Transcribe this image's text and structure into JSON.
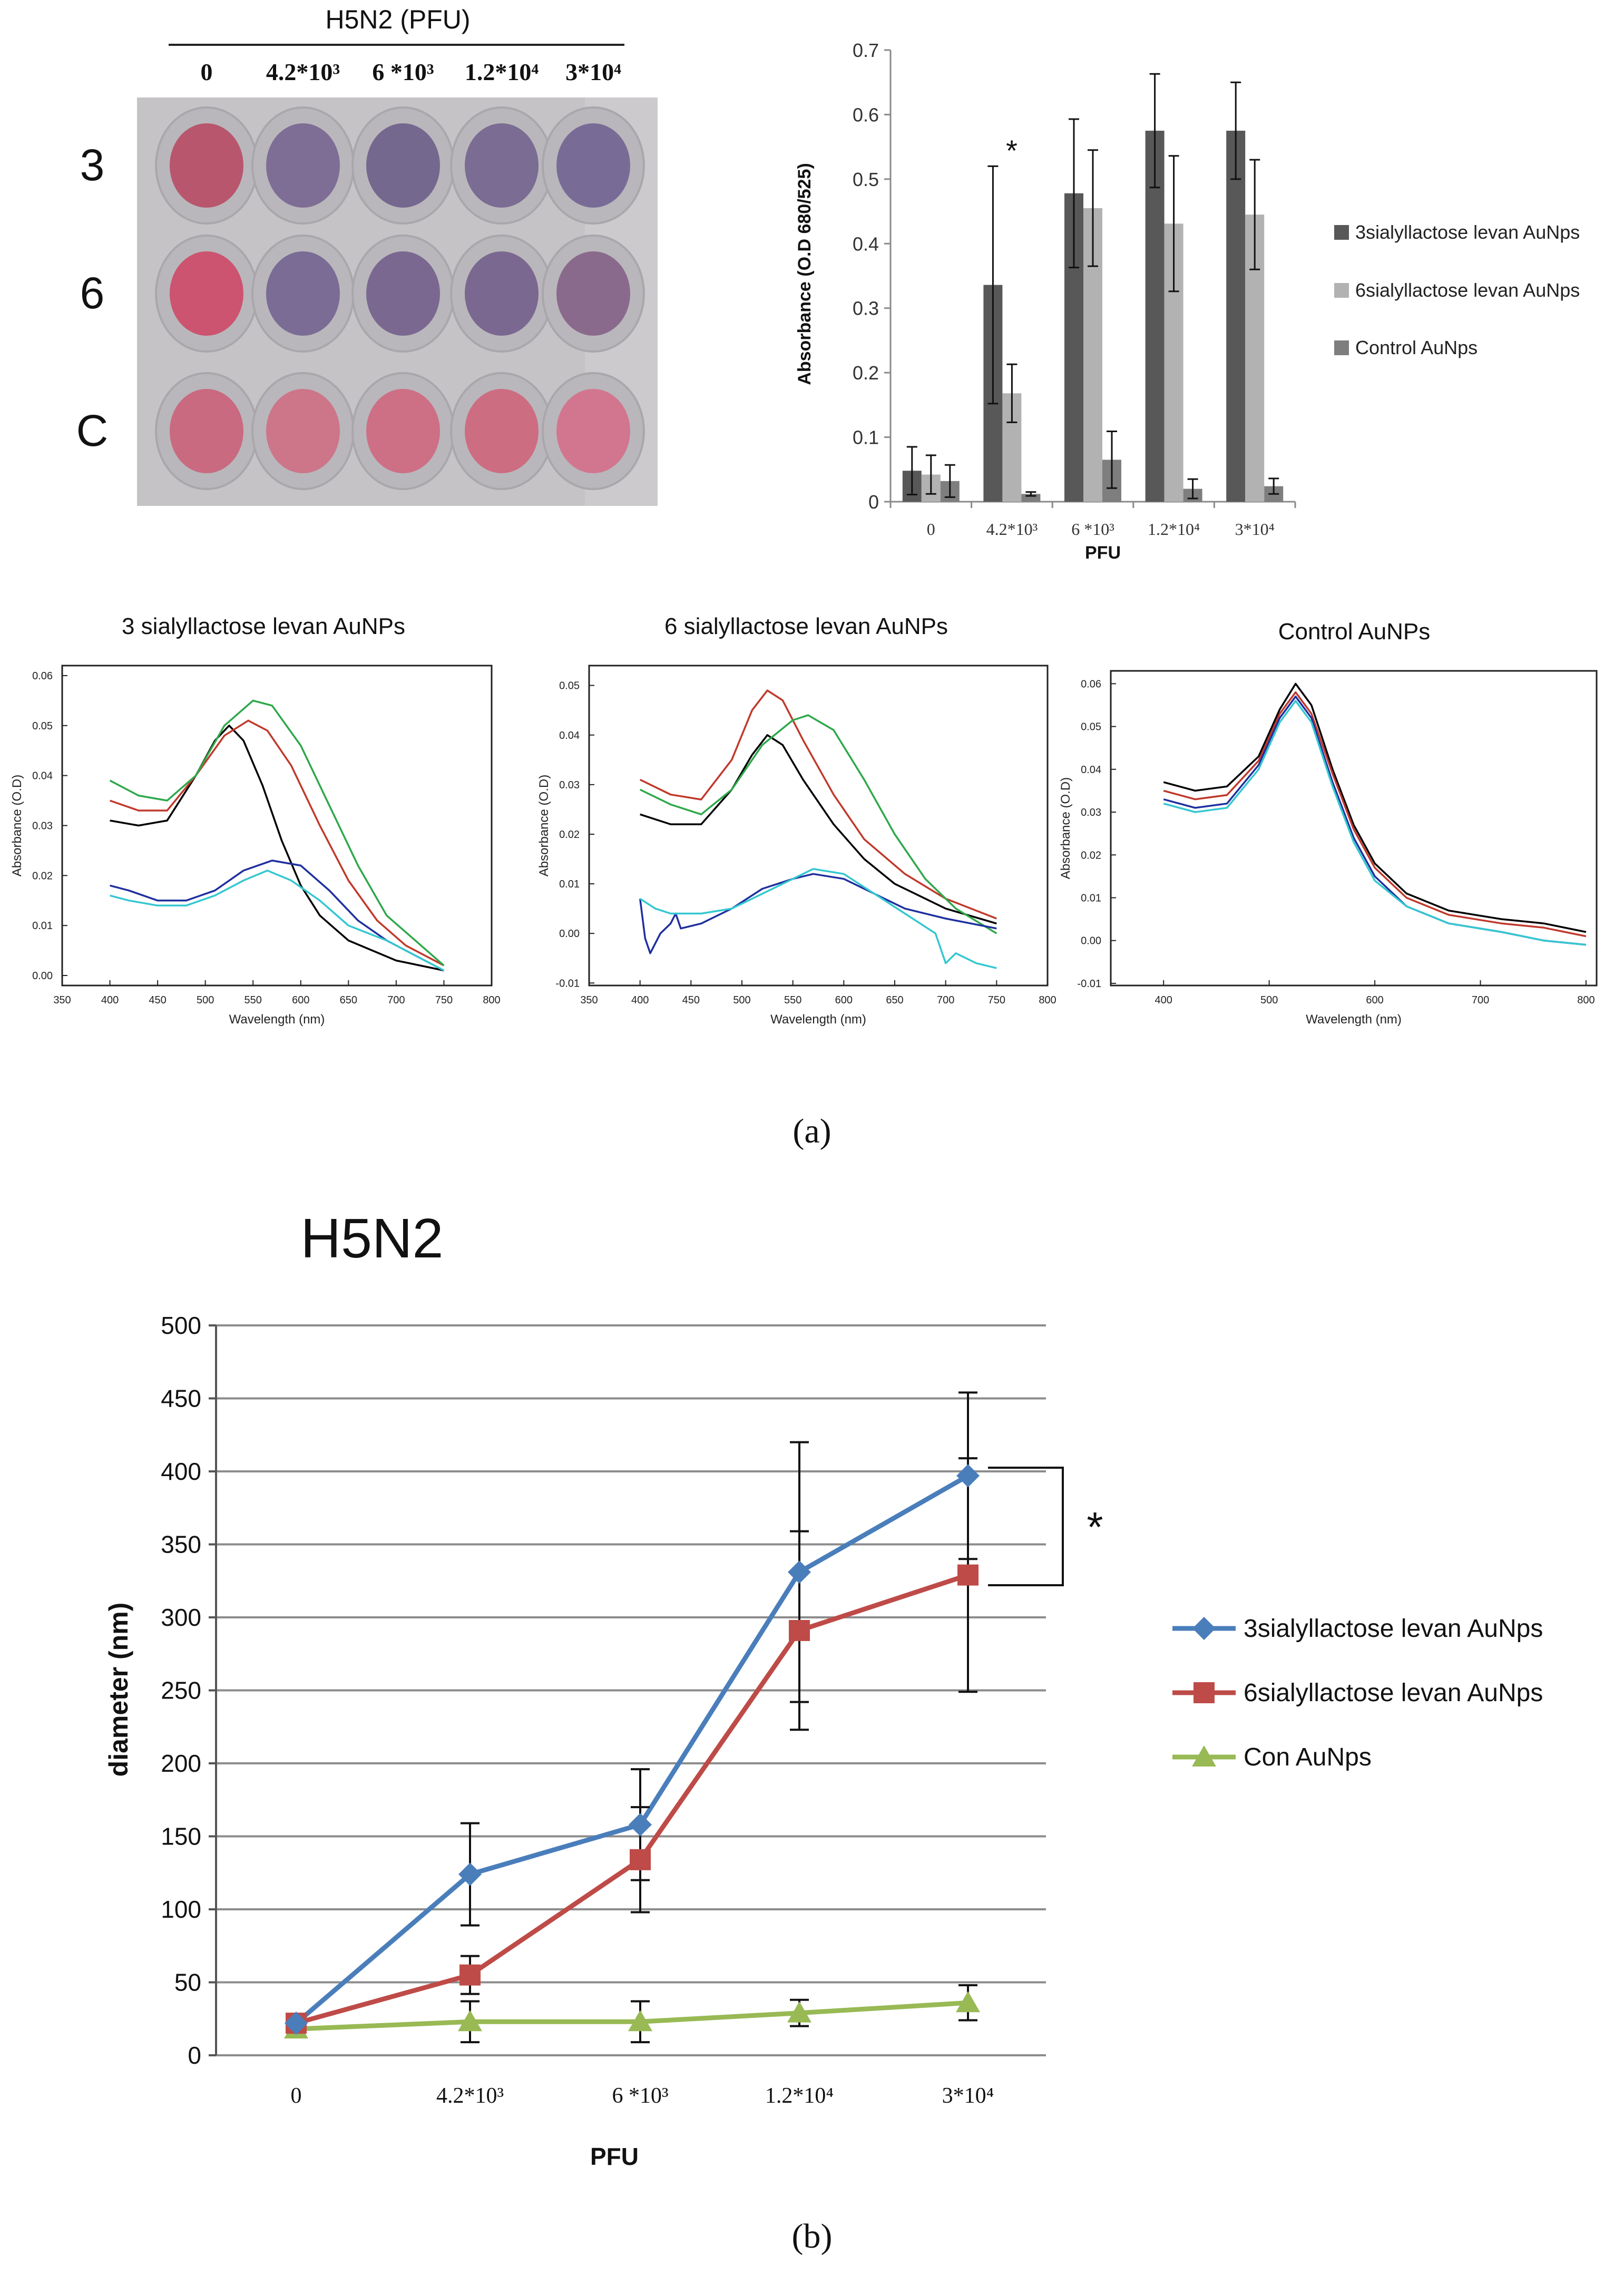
{
  "plate": {
    "header": "H5N2 (PFU)",
    "columns": [
      "0",
      "4.2*10³",
      "6 *10³",
      "1.2*10⁴",
      "3*10⁴"
    ],
    "rows": [
      "3",
      "6",
      "C"
    ],
    "well_colors": [
      [
        "#b8566e",
        "#7e6e96",
        "#75688f",
        "#7b6c93",
        "#786c97"
      ],
      [
        "#cc5470",
        "#7a6c95",
        "#7a6891",
        "#7b6890",
        "#8a6a8c"
      ],
      [
        "#c96a80",
        "#cd7589",
        "#cd6f85",
        "#cd6d82",
        "#d27690"
      ]
    ]
  },
  "bar_chart": {
    "type": "bar",
    "categories": [
      "0",
      "4.2*10³",
      "6 *10³",
      "1.2*10⁴",
      "3*10⁴"
    ],
    "series": [
      {
        "name": "3sialyllactose levan AuNps",
        "color": "#585858",
        "values": [
          0.048,
          0.336,
          0.478,
          0.575,
          0.575
        ],
        "errors": [
          0.037,
          0.184,
          0.115,
          0.088,
          0.075
        ]
      },
      {
        "name": "6sialyllactose levan AuNps",
        "color": "#b2b2b2",
        "values": [
          0.042,
          0.168,
          0.455,
          0.431,
          0.445
        ],
        "errors": [
          0.03,
          0.045,
          0.09,
          0.105,
          0.085
        ]
      },
      {
        "name": "Control AuNps",
        "color": "#7e7e7e",
        "values": [
          0.032,
          0.012,
          0.065,
          0.02,
          0.024
        ],
        "errors": [
          0.025,
          0.003,
          0.044,
          0.015,
          0.012
        ]
      }
    ],
    "ylabel": "Absorbance (O.D 680/525)",
    "xlabel": "PFU",
    "ylim": [
      0,
      0.7
    ],
    "yticks": [
      "0",
      "0.1",
      "0.2",
      "0.3",
      "0.4",
      "0.5",
      "0.6",
      "0.7"
    ],
    "annotation": "*"
  },
  "spectra": [
    {
      "title": "3 sialyllactose levan AuNPs",
      "ylabel": "Absorbance (O.D)",
      "xlabel": "Wavelength (nm)",
      "xticks": [
        "350",
        "400",
        "450",
        "500",
        "550",
        "600",
        "650",
        "700",
        "750",
        "800"
      ],
      "yticks": [
        "0.00",
        "0.01",
        "0.02",
        "0.03",
        "0.04",
        "0.05",
        "0.06"
      ],
      "xlim": [
        350,
        800
      ],
      "ylim": [
        -0.002,
        0.062
      ],
      "curves": [
        {
          "color": "#000000",
          "points": [
            [
              400,
              0.031
            ],
            [
              430,
              0.03
            ],
            [
              460,
              0.031
            ],
            [
              490,
              0.04
            ],
            [
              510,
              0.047
            ],
            [
              525,
              0.05
            ],
            [
              540,
              0.047
            ],
            [
              560,
              0.038
            ],
            [
              580,
              0.027
            ],
            [
              600,
              0.018
            ],
            [
              620,
              0.012
            ],
            [
              650,
              0.007
            ],
            [
              700,
              0.003
            ],
            [
              750,
              0.001
            ]
          ]
        },
        {
          "color": "#c0392b",
          "points": [
            [
              400,
              0.035
            ],
            [
              430,
              0.033
            ],
            [
              460,
              0.033
            ],
            [
              490,
              0.04
            ],
            [
              520,
              0.048
            ],
            [
              545,
              0.051
            ],
            [
              565,
              0.049
            ],
            [
              590,
              0.042
            ],
            [
              620,
              0.03
            ],
            [
              650,
              0.019
            ],
            [
              680,
              0.011
            ],
            [
              710,
              0.006
            ],
            [
              750,
              0.002
            ]
          ]
        },
        {
          "color": "#2ea84a",
          "points": [
            [
              400,
              0.039
            ],
            [
              430,
              0.036
            ],
            [
              460,
              0.035
            ],
            [
              490,
              0.04
            ],
            [
              520,
              0.05
            ],
            [
              550,
              0.055
            ],
            [
              570,
              0.054
            ],
            [
              600,
              0.046
            ],
            [
              630,
              0.034
            ],
            [
              660,
              0.022
            ],
            [
              690,
              0.012
            ],
            [
              720,
              0.007
            ],
            [
              750,
              0.002
            ]
          ]
        },
        {
          "color": "#1f2f9e",
          "points": [
            [
              400,
              0.018
            ],
            [
              420,
              0.017
            ],
            [
              450,
              0.015
            ],
            [
              480,
              0.015
            ],
            [
              510,
              0.017
            ],
            [
              540,
              0.021
            ],
            [
              570,
              0.023
            ],
            [
              600,
              0.022
            ],
            [
              630,
              0.017
            ],
            [
              660,
              0.011
            ],
            [
              690,
              0.007
            ],
            [
              720,
              0.004
            ],
            [
              750,
              0.001
            ]
          ]
        },
        {
          "color": "#34c7d1",
          "points": [
            [
              400,
              0.016
            ],
            [
              420,
              0.015
            ],
            [
              450,
              0.014
            ],
            [
              480,
              0.014
            ],
            [
              510,
              0.016
            ],
            [
              540,
              0.019
            ],
            [
              565,
              0.021
            ],
            [
              590,
              0.019
            ],
            [
              620,
              0.015
            ],
            [
              650,
              0.01
            ],
            [
              690,
              0.007
            ],
            [
              720,
              0.004
            ],
            [
              750,
              0.001
            ]
          ]
        }
      ]
    },
    {
      "title": "6 sialyllactose levan AuNPs",
      "ylabel": "Absorbance (O.D)",
      "xlabel": "Wavelength (nm)",
      "xticks": [
        "350",
        "400",
        "450",
        "500",
        "550",
        "600",
        "650",
        "700",
        "750",
        "800"
      ],
      "yticks": [
        "-0.01",
        "0.00",
        "0.01",
        "0.02",
        "0.03",
        "0.04",
        "0.05"
      ],
      "xlim": [
        350,
        800
      ],
      "ylim": [
        -0.0105,
        0.054
      ],
      "curves": [
        {
          "color": "#000000",
          "points": [
            [
              400,
              0.024
            ],
            [
              430,
              0.022
            ],
            [
              460,
              0.022
            ],
            [
              490,
              0.029
            ],
            [
              510,
              0.036
            ],
            [
              525,
              0.04
            ],
            [
              540,
              0.038
            ],
            [
              560,
              0.031
            ],
            [
              590,
              0.022
            ],
            [
              620,
              0.015
            ],
            [
              650,
              0.01
            ],
            [
              700,
              0.005
            ],
            [
              750,
              0.002
            ]
          ]
        },
        {
          "color": "#c0392b",
          "points": [
            [
              400,
              0.031
            ],
            [
              430,
              0.028
            ],
            [
              460,
              0.027
            ],
            [
              490,
              0.035
            ],
            [
              510,
              0.045
            ],
            [
              525,
              0.049
            ],
            [
              540,
              0.047
            ],
            [
              560,
              0.039
            ],
            [
              590,
              0.028
            ],
            [
              620,
              0.019
            ],
            [
              660,
              0.012
            ],
            [
              700,
              0.007
            ],
            [
              750,
              0.003
            ]
          ]
        },
        {
          "color": "#2ea84a",
          "points": [
            [
              400,
              0.029
            ],
            [
              430,
              0.026
            ],
            [
              460,
              0.024
            ],
            [
              490,
              0.029
            ],
            [
              520,
              0.038
            ],
            [
              550,
              0.043
            ],
            [
              565,
              0.044
            ],
            [
              590,
              0.041
            ],
            [
              620,
              0.031
            ],
            [
              650,
              0.02
            ],
            [
              680,
              0.011
            ],
            [
              710,
              0.005
            ],
            [
              750,
              0.0
            ]
          ]
        },
        {
          "color": "#1f2f9e",
          "points": [
            [
              400,
              0.007
            ],
            [
              405,
              -0.001
            ],
            [
              410,
              -0.004
            ],
            [
              420,
              0.0
            ],
            [
              430,
              0.002
            ],
            [
              435,
              0.004
            ],
            [
              440,
              0.001
            ],
            [
              460,
              0.002
            ],
            [
              490,
              0.005
            ],
            [
              520,
              0.009
            ],
            [
              550,
              0.011
            ],
            [
              570,
              0.012
            ],
            [
              600,
              0.011
            ],
            [
              630,
              0.008
            ],
            [
              660,
              0.005
            ],
            [
              700,
              0.003
            ],
            [
              750,
              0.001
            ]
          ]
        },
        {
          "color": "#34c7d1",
          "points": [
            [
              400,
              0.007
            ],
            [
              415,
              0.005
            ],
            [
              430,
              0.004
            ],
            [
              460,
              0.004
            ],
            [
              490,
              0.005
            ],
            [
              520,
              0.008
            ],
            [
              550,
              0.011
            ],
            [
              570,
              0.013
            ],
            [
              600,
              0.012
            ],
            [
              630,
              0.008
            ],
            [
              660,
              0.004
            ],
            [
              690,
              0.0
            ],
            [
              700,
              -0.006
            ],
            [
              710,
              -0.004
            ],
            [
              730,
              -0.006
            ],
            [
              750,
              -0.007
            ]
          ]
        }
      ]
    },
    {
      "title": "Control AuNPs",
      "ylabel": "Absorbance (O.D)",
      "xlabel": "Wavelength (nm)",
      "xticks": [
        "400",
        "500",
        "600",
        "700",
        "800"
      ],
      "yticks": [
        "-0.01",
        "0.00",
        "0.01",
        "0.02",
        "0.03",
        "0.04",
        "0.05",
        "0.06"
      ],
      "xlim": [
        350,
        810
      ],
      "ylim": [
        -0.0105,
        0.063
      ],
      "curves": [
        {
          "color": "#000000",
          "points": [
            [
              400,
              0.037
            ],
            [
              430,
              0.035
            ],
            [
              460,
              0.036
            ],
            [
              490,
              0.043
            ],
            [
              510,
              0.054
            ],
            [
              525,
              0.06
            ],
            [
              540,
              0.055
            ],
            [
              560,
              0.04
            ],
            [
              580,
              0.027
            ],
            [
              600,
              0.018
            ],
            [
              630,
              0.011
            ],
            [
              670,
              0.007
            ],
            [
              720,
              0.005
            ],
            [
              760,
              0.004
            ],
            [
              800,
              0.002
            ]
          ]
        },
        {
          "color": "#c0392b",
          "points": [
            [
              400,
              0.035
            ],
            [
              430,
              0.033
            ],
            [
              460,
              0.034
            ],
            [
              490,
              0.042
            ],
            [
              510,
              0.053
            ],
            [
              525,
              0.058
            ],
            [
              540,
              0.053
            ],
            [
              560,
              0.039
            ],
            [
              580,
              0.026
            ],
            [
              600,
              0.017
            ],
            [
              630,
              0.01
            ],
            [
              670,
              0.006
            ],
            [
              720,
              0.004
            ],
            [
              760,
              0.003
            ],
            [
              800,
              0.001
            ]
          ]
        },
        {
          "color": "#1f2f9e",
          "points": [
            [
              400,
              0.033
            ],
            [
              430,
              0.031
            ],
            [
              460,
              0.032
            ],
            [
              490,
              0.041
            ],
            [
              510,
              0.052
            ],
            [
              525,
              0.057
            ],
            [
              540,
              0.052
            ],
            [
              560,
              0.037
            ],
            [
              580,
              0.024
            ],
            [
              600,
              0.015
            ],
            [
              630,
              0.008
            ],
            [
              670,
              0.004
            ],
            [
              720,
              0.002
            ],
            [
              760,
              0.0
            ],
            [
              800,
              -0.001
            ]
          ]
        },
        {
          "color": "#34c7d1",
          "points": [
            [
              400,
              0.032
            ],
            [
              430,
              0.03
            ],
            [
              460,
              0.031
            ],
            [
              490,
              0.04
            ],
            [
              510,
              0.051
            ],
            [
              525,
              0.056
            ],
            [
              540,
              0.051
            ],
            [
              560,
              0.036
            ],
            [
              580,
              0.023
            ],
            [
              600,
              0.014
            ],
            [
              630,
              0.008
            ],
            [
              670,
              0.004
            ],
            [
              720,
              0.002
            ],
            [
              760,
              0.0
            ],
            [
              800,
              -0.001
            ]
          ]
        }
      ]
    }
  ],
  "label_a": "(a)",
  "line_chart": {
    "type": "line",
    "title": "H5N2",
    "categories": [
      "0",
      "4.2*10³",
      "6 *10³",
      "1.2*10⁴",
      "3*10⁴"
    ],
    "series": [
      {
        "name": "3sialyllactose levan AuNps",
        "color": "#4a7ebb",
        "marker": "diamond",
        "values": [
          22,
          124,
          158,
          331,
          397
        ],
        "errors": [
          0,
          35,
          38,
          89,
          57
        ]
      },
      {
        "name": "6sialyllactose levan AuNps",
        "color": "#be4b48",
        "marker": "square",
        "values": [
          22,
          55,
          134,
          291,
          329
        ],
        "errors": [
          0,
          13,
          36,
          68,
          80
        ]
      },
      {
        "name": "Con AuNps",
        "color": "#98b954",
        "marker": "triangle",
        "values": [
          18,
          23,
          23,
          29,
          36
        ],
        "errors": [
          0,
          14,
          14,
          9,
          12
        ]
      }
    ],
    "xlabel": "PFU",
    "ylabel": "diameter (nm)",
    "ylim": [
      0,
      500
    ],
    "yticks": [
      "0",
      "50",
      "100",
      "150",
      "200",
      "250",
      "300",
      "350",
      "400",
      "450",
      "500"
    ],
    "annotation": "*"
  },
  "label_b": "(b)"
}
